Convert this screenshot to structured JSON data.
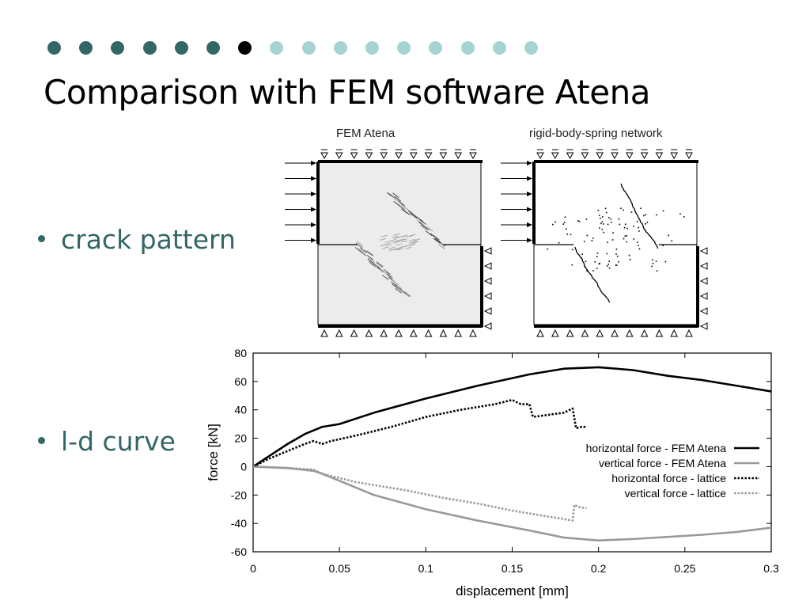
{
  "slide": {
    "title": "Comparison with FEM software Atena",
    "dot_colors": {
      "past": "#336666",
      "current": "#000000",
      "future": "#a6d3d3"
    },
    "progress": {
      "current": 7,
      "total": 16
    },
    "text_color": "#336666"
  },
  "bullets": [
    {
      "text": "crack pattern"
    },
    {
      "text": "l-d curve"
    }
  ],
  "figure": {
    "left_panel_title": "FEM Atena",
    "right_panel_title": "rigid-body-spring network"
  },
  "chart_data": {
    "type": "line",
    "xlabel": "displacement [mm]",
    "ylabel": "force [kN]",
    "xlim": [
      0,
      0.3
    ],
    "ylim": [
      -60,
      80
    ],
    "xticks": [
      0,
      0.05,
      0.1,
      0.15,
      0.2,
      0.25,
      0.3
    ],
    "xtick_labels": [
      "0",
      "0.05",
      "0.1",
      "0.15",
      "0.2",
      "0.25",
      "0.3"
    ],
    "yticks": [
      -60,
      -40,
      -20,
      0,
      20,
      40,
      60,
      80
    ],
    "ytick_labels": [
      "-60",
      "-40",
      "-20",
      "0",
      "20",
      "40",
      "60",
      "80"
    ],
    "grid": false,
    "legend_position": "right",
    "series": [
      {
        "name": "horizontal force - FEM Atena",
        "color": "#000000",
        "dash": "solid",
        "x": [
          0,
          0.01,
          0.02,
          0.03,
          0.04,
          0.05,
          0.07,
          0.1,
          0.13,
          0.16,
          0.18,
          0.2,
          0.22,
          0.24,
          0.26,
          0.28,
          0.3
        ],
        "y": [
          0,
          8,
          16,
          23,
          28,
          30,
          38,
          48,
          57,
          65,
          69,
          70,
          68,
          64,
          61,
          57,
          53
        ]
      },
      {
        "name": "vertical force - FEM Atena",
        "color": "#999999",
        "dash": "solid",
        "x": [
          0,
          0.02,
          0.035,
          0.04,
          0.05,
          0.07,
          0.1,
          0.13,
          0.16,
          0.18,
          0.2,
          0.22,
          0.26,
          0.28,
          0.3
        ],
        "y": [
          0,
          -1,
          -3,
          -5,
          -10,
          -20,
          -30,
          -38,
          -45,
          -50,
          -52,
          -51,
          -48,
          -46,
          -43
        ]
      },
      {
        "name": "horizontal force - lattice",
        "color": "#000000",
        "dash": "dotted",
        "x": [
          0,
          0.01,
          0.02,
          0.03,
          0.035,
          0.04,
          0.045,
          0.06,
          0.08,
          0.1,
          0.12,
          0.13,
          0.14,
          0.15,
          0.155,
          0.16,
          0.162,
          0.18,
          0.185,
          0.187,
          0.19,
          0.193
        ],
        "y": [
          0,
          6,
          11,
          16,
          18,
          16,
          18,
          22,
          28,
          35,
          40,
          42,
          44,
          47,
          44,
          44,
          35,
          38,
          41,
          27,
          28,
          28
        ]
      },
      {
        "name": "vertical force - lattice",
        "color": "#999999",
        "dash": "dotted",
        "x": [
          0,
          0.02,
          0.035,
          0.04,
          0.05,
          0.06,
          0.07,
          0.09,
          0.11,
          0.13,
          0.15,
          0.17,
          0.185,
          0.186,
          0.19,
          0.193
        ],
        "y": [
          0,
          -1,
          -2,
          -5,
          -8,
          -11,
          -13,
          -17,
          -22,
          -26,
          -31,
          -35,
          -38,
          -27,
          -29,
          -29
        ]
      }
    ]
  }
}
